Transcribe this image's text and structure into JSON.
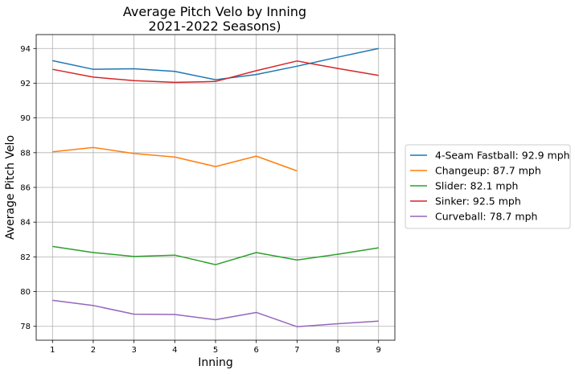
{
  "chart_data": {
    "type": "line",
    "title": "Average Pitch Velo by Inning",
    "subtitle": "2021-2022 Seasons)",
    "xlabel": "Inning",
    "ylabel": "Average Pitch Velo",
    "x": [
      1,
      2,
      3,
      4,
      5,
      6,
      7,
      8,
      9
    ],
    "xlim": [
      0.6,
      9.4
    ],
    "ylim": [
      77.2,
      94.8
    ],
    "yticks": [
      78,
      80,
      82,
      84,
      86,
      88,
      90,
      92,
      94
    ],
    "grid": true,
    "legend_position": "outside-right",
    "series": [
      {
        "name": "4-Seam Fastball: 92.9 mph",
        "color": "#1f77b4",
        "values": [
          93.3,
          92.8,
          92.83,
          92.68,
          92.2,
          92.5,
          92.98,
          93.5,
          94.0
        ]
      },
      {
        "name": "Changeup: 87.7 mph",
        "color": "#ff7f0e",
        "values": [
          88.05,
          88.3,
          87.95,
          87.75,
          87.2,
          87.8,
          86.95,
          null,
          null
        ]
      },
      {
        "name": "Slider: 82.1 mph",
        "color": "#2ca02c",
        "values": [
          82.6,
          82.25,
          82.02,
          82.1,
          81.55,
          82.25,
          81.82,
          82.15,
          82.52
        ]
      },
      {
        "name": "Sinker: 92.5 mph",
        "color": "#d62728",
        "values": [
          92.8,
          92.35,
          92.15,
          92.05,
          92.1,
          92.72,
          93.28,
          92.85,
          92.45
        ]
      },
      {
        "name": "Curveball: 78.7 mph",
        "color": "#9467bd",
        "values": [
          79.5,
          79.2,
          78.7,
          78.68,
          78.38,
          78.8,
          77.98,
          78.15,
          78.3
        ]
      }
    ]
  }
}
